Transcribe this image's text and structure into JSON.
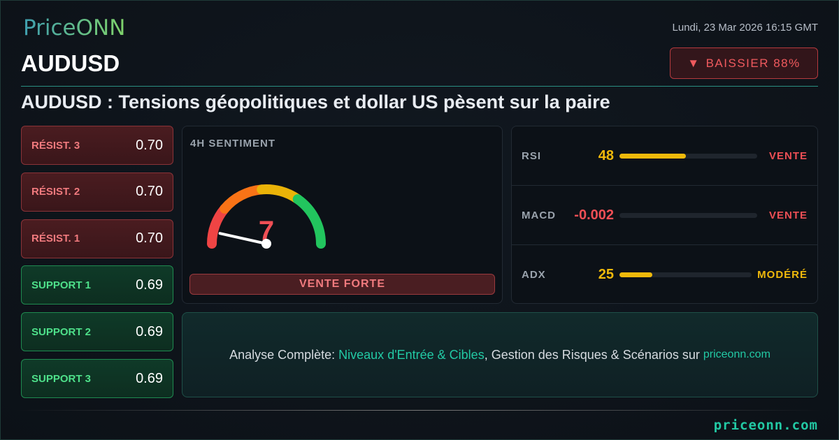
{
  "brand": {
    "logo": "PriceONN",
    "footer_site": "priceonn.com"
  },
  "header": {
    "date": "Lundi, 23 Mar 2026 16:15 GMT",
    "pair": "AUDUSD",
    "badge": {
      "icon": "triangle-down-icon",
      "label": "BAISSIER 88%"
    },
    "title": "AUDUSD : Tensions géopolitiques et dollar US pèsent sur la paire"
  },
  "levels": [
    {
      "label": "RÉSIST. 3",
      "value": "0.70",
      "type": "resistance"
    },
    {
      "label": "RÉSIST. 2",
      "value": "0.70",
      "type": "resistance"
    },
    {
      "label": "RÉSIST. 1",
      "value": "0.70",
      "type": "resistance"
    },
    {
      "label": "SUPPORT 1",
      "value": "0.69",
      "type": "support"
    },
    {
      "label": "SUPPORT 2",
      "value": "0.69",
      "type": "support"
    },
    {
      "label": "SUPPORT 3",
      "value": "0.69",
      "type": "support"
    }
  ],
  "sentiment": {
    "heading": "4H SENTIMENT",
    "value": "7",
    "gauge_percent": 7,
    "verdict": "VENTE FORTE"
  },
  "indicators": [
    {
      "name": "RSI",
      "value": "48",
      "fill_percent": 48,
      "signal": "VENTE",
      "value_color": "#f0b90b",
      "signal_color": "#ef4f55"
    },
    {
      "name": "MACD",
      "value": "-0.002",
      "fill_percent": 0,
      "signal": "VENTE",
      "value_color": "#ef4f55",
      "signal_color": "#ef4f55"
    },
    {
      "name": "ADX",
      "value": "25",
      "fill_percent": 25,
      "signal": "MODÉRÉ",
      "value_color": "#f0b90b",
      "signal_color": "#f0b90b"
    }
  ],
  "cta": {
    "prefix": "Analyse Complète: ",
    "highlight": "Niveaux d'Entrée & Cibles",
    "suffix": ", Gestion des Risques & Scénarios sur",
    "site": "priceonn.com"
  },
  "colors": {
    "accent": "#22c9a4",
    "bearish": "#ef4f55",
    "bullish": "#4ee08a",
    "neutral": "#f0b90b"
  }
}
